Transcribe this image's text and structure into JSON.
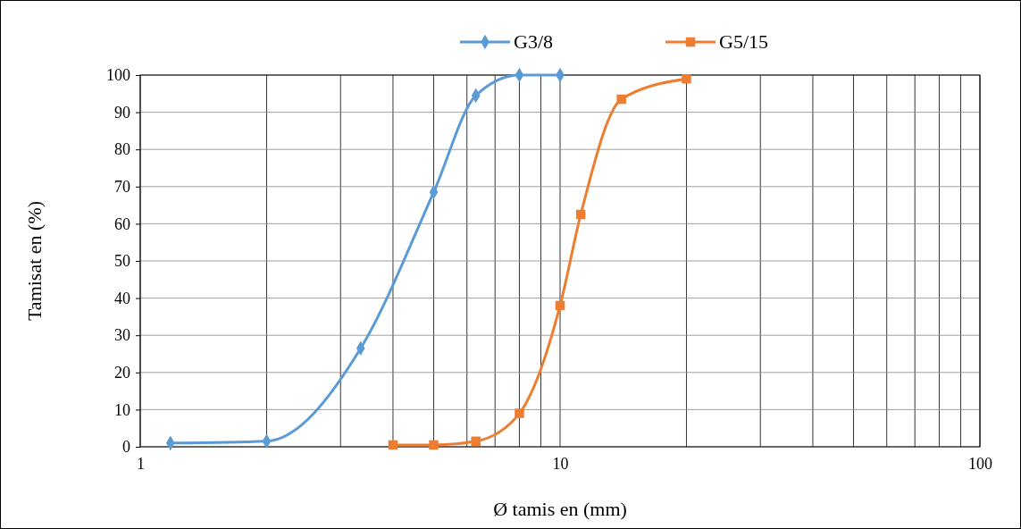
{
  "chart_data": {
    "type": "line",
    "xlabel": "Ø tamis en (mm)",
    "ylabel": "Tamisat en (%)",
    "log": "x",
    "grid": true,
    "legend": "top",
    "xlim": [
      1,
      100
    ],
    "xticks": [
      1,
      {
        "value": 2,
        "label": null
      },
      {
        "value": 3,
        "label": null
      },
      {
        "value": 4,
        "label": null
      },
      {
        "value": 5,
        "label": null
      },
      {
        "value": 6,
        "label": null
      },
      {
        "value": 7,
        "label": null
      },
      {
        "value": 8,
        "label": null
      },
      {
        "value": 9,
        "label": null
      },
      10,
      {
        "value": 20,
        "label": null
      },
      {
        "value": 30,
        "label": null
      },
      {
        "value": 40,
        "label": null
      },
      {
        "value": 50,
        "label": null
      },
      {
        "value": 60,
        "label": null
      },
      {
        "value": 70,
        "label": null
      },
      {
        "value": 80,
        "label": null
      },
      {
        "value": 90,
        "label": null
      },
      100
    ],
    "ylim": [
      0,
      100
    ],
    "yticks": [
      0,
      10,
      20,
      30,
      40,
      50,
      60,
      70,
      80,
      90,
      100
    ],
    "series": [
      {
        "name": "G3/8",
        "color": "#5b9bd5",
        "marker": "diamond",
        "x": [
          1.18,
          2,
          3.35,
          5,
          6.3,
          8,
          10
        ],
        "values": [
          1,
          1.5,
          26.5,
          68.5,
          94.5,
          100,
          100
        ]
      },
      {
        "name": "G5/15",
        "color": "#ed7d31",
        "marker": "square",
        "x": [
          4,
          5,
          6.3,
          8,
          10,
          11.2,
          14,
          20
        ],
        "values": [
          0.5,
          0.5,
          1.5,
          9,
          38,
          62.5,
          93.5,
          99
        ]
      }
    ]
  }
}
